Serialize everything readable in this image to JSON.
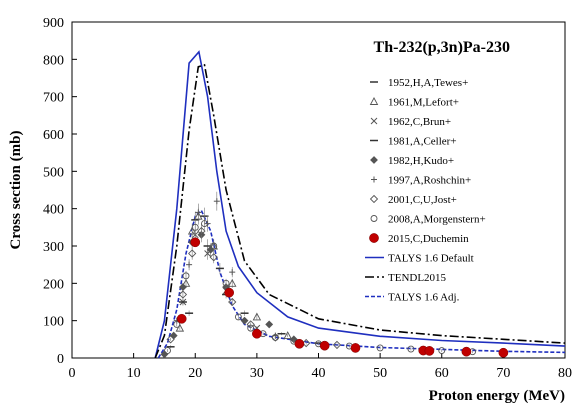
{
  "chart_data": {
    "type": "scatter",
    "title": "Th-232(p,3n)Pa-230",
    "xlabel": "Proton energy (MeV)",
    "ylabel": "Cross section (mb)",
    "xlim": [
      0,
      80
    ],
    "ylim": [
      0,
      900
    ],
    "xticks": [
      0,
      10,
      20,
      30,
      40,
      50,
      60,
      70,
      80
    ],
    "yticks": [
      0,
      100,
      200,
      300,
      400,
      500,
      600,
      700,
      800,
      900
    ],
    "grid": false,
    "legend_position": "right",
    "series": [
      {
        "name": "1952,H,A,Tewes+",
        "marker": "dash",
        "color": "#333333",
        "points": [
          [
            19.0,
            120
          ],
          [
            22.0,
            300
          ],
          [
            25.0,
            170
          ]
        ]
      },
      {
        "name": "1961,M,Lefort+",
        "marker": "triangle",
        "color": "#555555",
        "points": [
          [
            17.5,
            80
          ],
          [
            18.5,
            200
          ],
          [
            19.5,
            340
          ],
          [
            20.5,
            380
          ],
          [
            23.0,
            300
          ],
          [
            26.0,
            200
          ],
          [
            30.0,
            110
          ],
          [
            35.0,
            60
          ]
        ]
      },
      {
        "name": "1962,C,Brun+",
        "marker": "x",
        "color": "#555555",
        "points": [
          [
            18.0,
            150
          ],
          [
            20.0,
            330
          ],
          [
            22.0,
            280
          ],
          [
            25.0,
            180
          ],
          [
            30.0,
            80
          ]
        ]
      },
      {
        "name": "1981,A,Celler+",
        "marker": "dash",
        "color": "#333333",
        "points": [
          [
            16.0,
            30
          ],
          [
            18.0,
            150
          ],
          [
            20.0,
            370
          ],
          [
            21.5,
            380
          ],
          [
            24.0,
            240
          ],
          [
            28.0,
            120
          ],
          [
            34.0,
            65
          ],
          [
            40.0,
            40
          ]
        ]
      },
      {
        "name": "1982,H,Kudo+",
        "marker": "diamond",
        "color": "#555555",
        "points": [
          [
            15.0,
            10
          ],
          [
            16.5,
            60
          ],
          [
            18.0,
            190
          ],
          [
            19.5,
            310
          ],
          [
            21.0,
            330
          ],
          [
            22.5,
            290
          ],
          [
            25.0,
            190
          ],
          [
            28.0,
            100
          ],
          [
            32.0,
            90
          ],
          [
            36.0,
            50
          ]
        ]
      },
      {
        "name": "1997,A,Roshchin+",
        "marker": "plus",
        "color": "#555555",
        "points": [
          [
            17.0,
            100
          ],
          [
            19.0,
            250
          ],
          [
            20.5,
            390
          ],
          [
            22.0,
            360
          ],
          [
            23.5,
            420
          ],
          [
            26.0,
            230
          ],
          [
            28.0,
            100
          ],
          [
            33.0,
            60
          ]
        ]
      },
      {
        "name": "2001,C,U,Jost+",
        "marker": "open-diamond",
        "color": "#555555",
        "points": [
          [
            16.0,
            50
          ],
          [
            18.0,
            170
          ],
          [
            19.5,
            280
          ],
          [
            21.0,
            340
          ],
          [
            23.0,
            270
          ],
          [
            26.0,
            150
          ],
          [
            29.0,
            90
          ],
          [
            33.0,
            55
          ],
          [
            38.0,
            40
          ],
          [
            43.0,
            35
          ]
        ]
      },
      {
        "name": "2008,A,Morgenstern+",
        "marker": "open-circle",
        "color": "#555555",
        "points": [
          [
            15.5,
            20
          ],
          [
            17.0,
            90
          ],
          [
            18.5,
            220
          ],
          [
            20.0,
            350
          ],
          [
            21.5,
            360
          ],
          [
            23.0,
            300
          ],
          [
            25.0,
            200
          ],
          [
            27.0,
            110
          ],
          [
            29.0,
            80
          ],
          [
            31.0,
            65
          ],
          [
            33.0,
            55
          ],
          [
            36.0,
            45
          ],
          [
            40.0,
            38
          ],
          [
            45.0,
            32
          ],
          [
            50.0,
            27
          ],
          [
            55.0,
            24
          ],
          [
            60.0,
            20
          ],
          [
            65.0,
            17
          ],
          [
            70.0,
            15
          ]
        ]
      },
      {
        "name": "2015,C,Duchemin",
        "marker": "filled-circle",
        "color": "#c00000",
        "points": [
          [
            17.8,
            105
          ],
          [
            20.0,
            310
          ],
          [
            25.5,
            175
          ],
          [
            30.0,
            65
          ],
          [
            36.9,
            38
          ],
          [
            41.0,
            33
          ],
          [
            46.0,
            27
          ],
          [
            57.0,
            20
          ],
          [
            58.0,
            19
          ],
          [
            64.0,
            17
          ],
          [
            70.0,
            14
          ]
        ]
      },
      {
        "name": "TALYS 1.6 Default",
        "line": "solid",
        "color": "#1f2fbf",
        "points": [
          [
            13.5,
            0
          ],
          [
            15,
            100
          ],
          [
            17,
            400
          ],
          [
            19,
            790
          ],
          [
            20.6,
            820
          ],
          [
            22,
            700
          ],
          [
            23.5,
            500
          ],
          [
            25,
            340
          ],
          [
            27,
            245
          ],
          [
            30,
            175
          ],
          [
            35,
            110
          ],
          [
            40,
            80
          ],
          [
            50,
            58
          ],
          [
            60,
            47
          ],
          [
            70,
            40
          ],
          [
            80,
            32
          ]
        ]
      },
      {
        "name": "TENDL2015",
        "line": "dash-dot",
        "color": "#000000",
        "points": [
          [
            13.5,
            0
          ],
          [
            15,
            60
          ],
          [
            17,
            300
          ],
          [
            19,
            610
          ],
          [
            20.5,
            780
          ],
          [
            21.5,
            785
          ],
          [
            23,
            650
          ],
          [
            25,
            450
          ],
          [
            28,
            260
          ],
          [
            32,
            170
          ],
          [
            40,
            105
          ],
          [
            50,
            75
          ],
          [
            60,
            60
          ],
          [
            70,
            50
          ],
          [
            80,
            40
          ]
        ]
      },
      {
        "name": "TALYS 1.6 Adj.",
        "line": "dashed",
        "color": "#1f2fbf",
        "points": [
          [
            14.0,
            0
          ],
          [
            15.5,
            40
          ],
          [
            17,
            130
          ],
          [
            18.5,
            280
          ],
          [
            20,
            380
          ],
          [
            21,
            395
          ],
          [
            22.5,
            340
          ],
          [
            24,
            230
          ],
          [
            26,
            140
          ],
          [
            28,
            90
          ],
          [
            32,
            58
          ],
          [
            40,
            38
          ],
          [
            50,
            28
          ],
          [
            60,
            23
          ],
          [
            70,
            18
          ],
          [
            80,
            15
          ]
        ]
      }
    ]
  }
}
